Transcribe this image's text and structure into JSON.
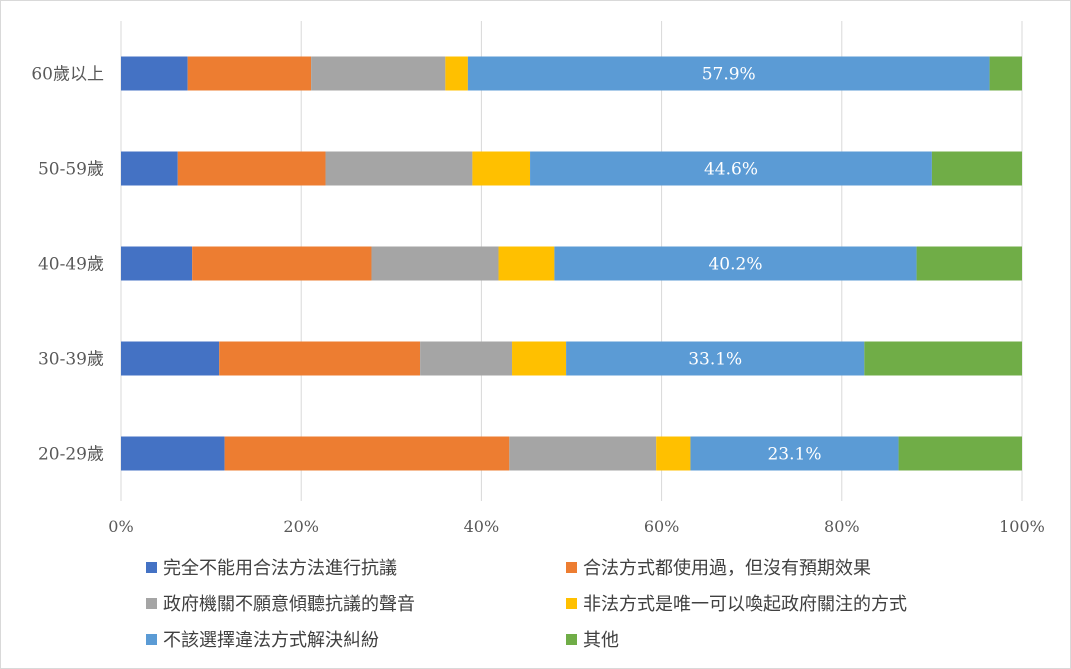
{
  "chart_data": {
    "type": "bar",
    "orientation": "horizontal",
    "stacked": "100%",
    "categories": [
      "60歲以上",
      "50-59歲",
      "40-49歲",
      "30-39歲",
      "20-29歲"
    ],
    "series": [
      {
        "name": "完全不能用合法方法進行抗議",
        "color": "#4472C4",
        "values": [
          7.4,
          6.3,
          7.9,
          10.9,
          11.5
        ]
      },
      {
        "name": "合法方式都使用過，但沒有預期效果",
        "color": "#ED7D31",
        "values": [
          13.7,
          16.4,
          19.9,
          22.3,
          31.6
        ]
      },
      {
        "name": "政府機關不願意傾聽抗議的聲音",
        "color": "#A5A5A5",
        "values": [
          14.9,
          16.3,
          14.1,
          10.2,
          16.3
        ]
      },
      {
        "name": "非法方式是唯一可以喚起政府關注的方式",
        "color": "#FFC000",
        "values": [
          2.5,
          6.4,
          6.2,
          6.0,
          3.8
        ]
      },
      {
        "name": "不該選擇違法方式解決糾紛",
        "color": "#5B9BD5",
        "values": [
          57.9,
          44.6,
          40.2,
          33.1,
          23.1
        ]
      },
      {
        "name": "其他",
        "color": "#70AD47",
        "values": [
          3.6,
          10.0,
          11.7,
          17.5,
          13.7
        ]
      }
    ],
    "data_labels": [
      "57.9%",
      "44.6%",
      "40.2%",
      "33.1%",
      "23.1%"
    ],
    "data_label_series": 4,
    "xlim": [
      0,
      100
    ],
    "xticks": [
      "0%",
      "20%",
      "40%",
      "60%",
      "80%",
      "100%"
    ],
    "grid": true,
    "legend_position": "bottom"
  }
}
